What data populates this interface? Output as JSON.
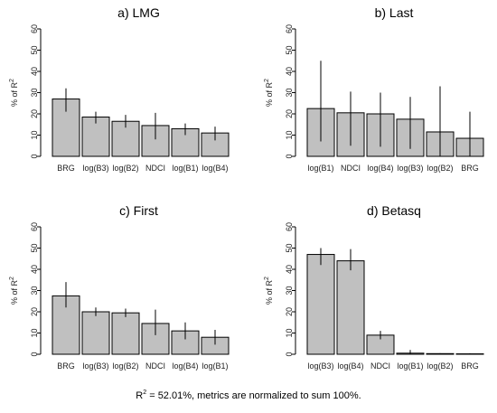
{
  "caption": {
    "prefix": "R",
    "sup": "2",
    "text": " = 52.01%, metrics are normalized to sum 100%."
  },
  "chart_data": [
    {
      "type": "bar",
      "title": "a) LMG",
      "ylabel": {
        "prefix": "% of R",
        "sup": "2"
      },
      "ylim": [
        0,
        60
      ],
      "yticks": [
        0,
        10,
        20,
        30,
        40,
        50,
        60
      ],
      "categories": [
        "BRG",
        "log(B3)",
        "log(B2)",
        "NDCI",
        "log(B1)",
        "log(B4)"
      ],
      "values": [
        27,
        18.5,
        16.5,
        14.5,
        13,
        11
      ],
      "err_low": [
        21,
        15.5,
        13.5,
        8,
        10,
        7.5
      ],
      "err_high": [
        32,
        21,
        19.5,
        20.5,
        15.5,
        14
      ],
      "bar_color": "#c0c0c0"
    },
    {
      "type": "bar",
      "title": "b) Last",
      "ylabel": {
        "prefix": "% of R",
        "sup": "2"
      },
      "ylim": [
        0,
        60
      ],
      "yticks": [
        0,
        10,
        20,
        30,
        40,
        50,
        60
      ],
      "categories": [
        "log(B1)",
        "NDCI",
        "log(B4)",
        "log(B3)",
        "log(B2)",
        "BRG"
      ],
      "values": [
        22.5,
        20.5,
        20,
        17.5,
        11.5,
        8.5
      ],
      "err_low": [
        7,
        5,
        4.5,
        3.5,
        0,
        0
      ],
      "err_high": [
        45,
        30.5,
        30,
        28,
        33,
        21
      ],
      "bar_color": "#c0c0c0"
    },
    {
      "type": "bar",
      "title": "c) First",
      "ylabel": {
        "prefix": "% of R",
        "sup": "2"
      },
      "ylim": [
        0,
        60
      ],
      "yticks": [
        0,
        10,
        20,
        30,
        40,
        50,
        60
      ],
      "categories": [
        "BRG",
        "log(B3)",
        "log(B2)",
        "NDCI",
        "log(B4)",
        "log(B1)"
      ],
      "values": [
        27.5,
        20,
        19.5,
        14.5,
        11,
        8
      ],
      "err_low": [
        22,
        18,
        17.5,
        9,
        7,
        4.5
      ],
      "err_high": [
        34,
        22,
        21.5,
        21,
        15,
        11.5
      ],
      "bar_color": "#c0c0c0"
    },
    {
      "type": "bar",
      "title": "d) Betasq",
      "ylabel": {
        "prefix": "% of R",
        "sup": "2"
      },
      "ylim": [
        0,
        60
      ],
      "yticks": [
        0,
        10,
        20,
        30,
        40,
        50,
        60
      ],
      "categories": [
        "log(B3)",
        "log(B4)",
        "NDCI",
        "log(B1)",
        "log(B2)",
        "BRG"
      ],
      "values": [
        47,
        44,
        9,
        0.5,
        0.3,
        0.2
      ],
      "err_low": [
        42,
        39.5,
        7,
        0,
        0,
        0
      ],
      "err_high": [
        50,
        49.5,
        11,
        2,
        0.5,
        0.5
      ],
      "bar_color": "#c0c0c0"
    }
  ]
}
